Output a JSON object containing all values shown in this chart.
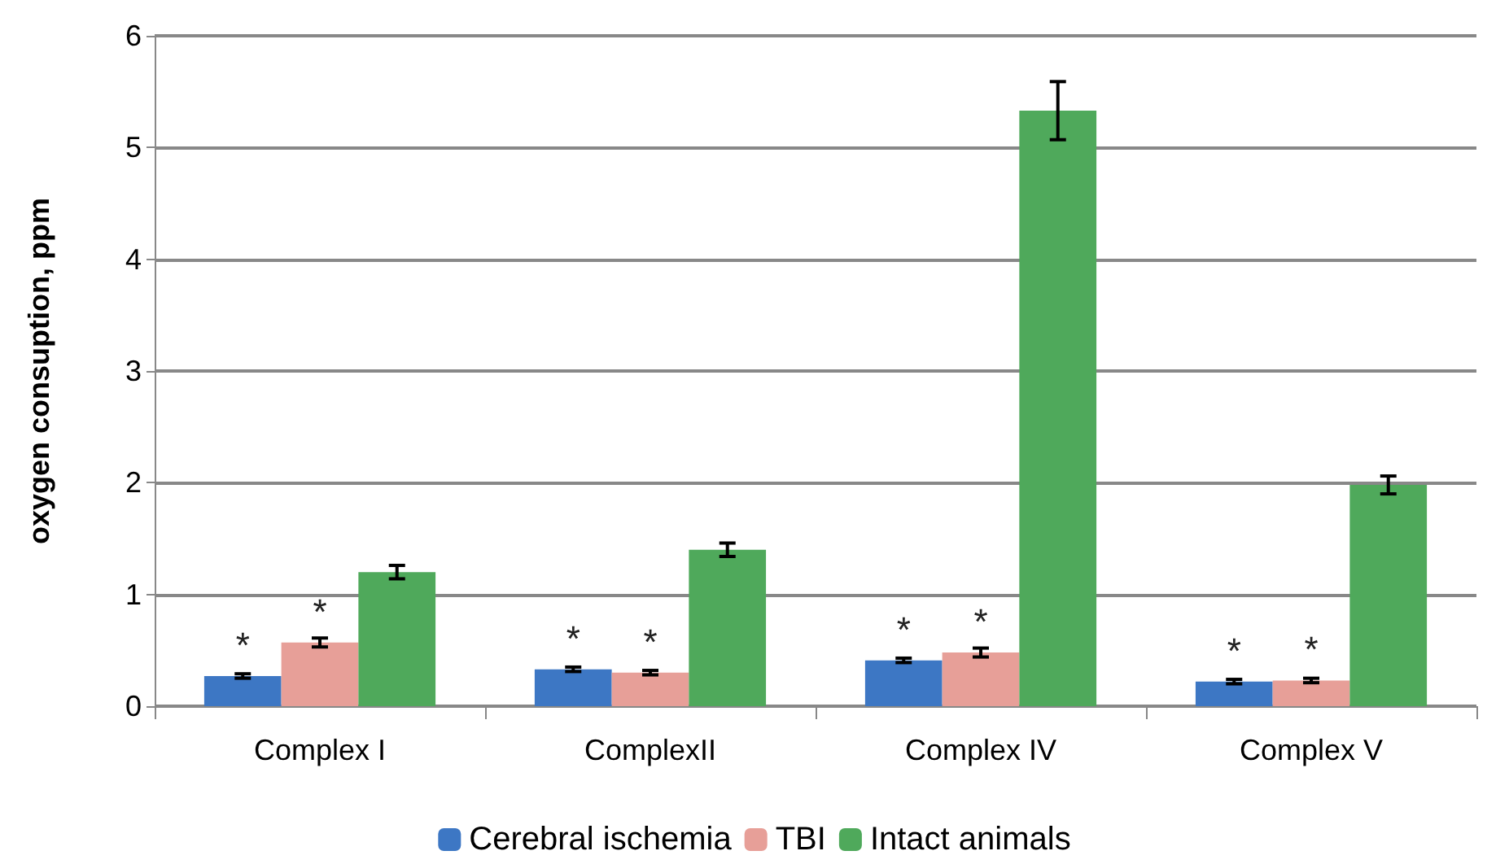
{
  "chart_data": {
    "type": "bar",
    "ylabel": "oxygen consuption, ppm",
    "categories": [
      "Complex I",
      "ComplexII",
      "Complex IV",
      "Complex V"
    ],
    "series": [
      {
        "name": "Cerebral ischemia",
        "color": "#3d77c4",
        "values": [
          0.27,
          0.33,
          0.41,
          0.22
        ],
        "errors": [
          0.02,
          0.02,
          0.02,
          0.02
        ],
        "value_labels": [
          "*",
          "*",
          "*",
          "*"
        ]
      },
      {
        "name": "TBI",
        "color": "#e79f98",
        "values": [
          0.57,
          0.3,
          0.48,
          0.23
        ],
        "errors": [
          0.04,
          0.02,
          0.04,
          0.02
        ],
        "value_labels": [
          "*",
          "*",
          "*",
          "*"
        ]
      },
      {
        "name": "Intact animals",
        "color": "#4fa95b",
        "values": [
          1.2,
          1.4,
          5.33,
          1.98
        ],
        "errors": [
          0.06,
          0.06,
          0.26,
          0.08
        ]
      }
    ],
    "ylim": [
      0,
      6
    ],
    "yticks": [
      0,
      1,
      2,
      3,
      4,
      5,
      6
    ],
    "grid": "y",
    "legend": "bottom"
  }
}
